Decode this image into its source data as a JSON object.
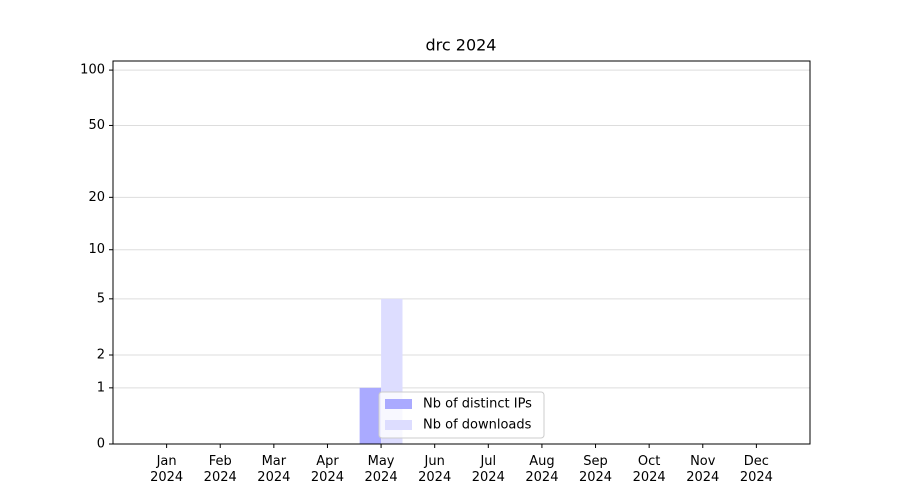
{
  "chart_data": {
    "type": "bar",
    "title": "drc 2024",
    "categories": [
      "Jan 2024",
      "Feb 2024",
      "Mar 2024",
      "Apr 2024",
      "May 2024",
      "Jun 2024",
      "Jul 2024",
      "Aug 2024",
      "Sep 2024",
      "Oct 2024",
      "Nov 2024",
      "Dec 2024"
    ],
    "series": [
      {
        "name": "Nb of distinct IPs",
        "color": "#aaaaff",
        "values": [
          0,
          0,
          0,
          0,
          1,
          0,
          0,
          0,
          0,
          0,
          0,
          0
        ]
      },
      {
        "name": "Nb of downloads",
        "color": "#ddddff",
        "values": [
          0,
          0,
          0,
          0,
          5,
          0,
          0,
          0,
          0,
          0,
          0,
          0
        ]
      }
    ],
    "yscale": "log1p",
    "ylim": [
      0,
      112
    ],
    "yticks": [
      0,
      1,
      2,
      5,
      10,
      20,
      50,
      100
    ],
    "grid": true,
    "legend": "lower center"
  }
}
